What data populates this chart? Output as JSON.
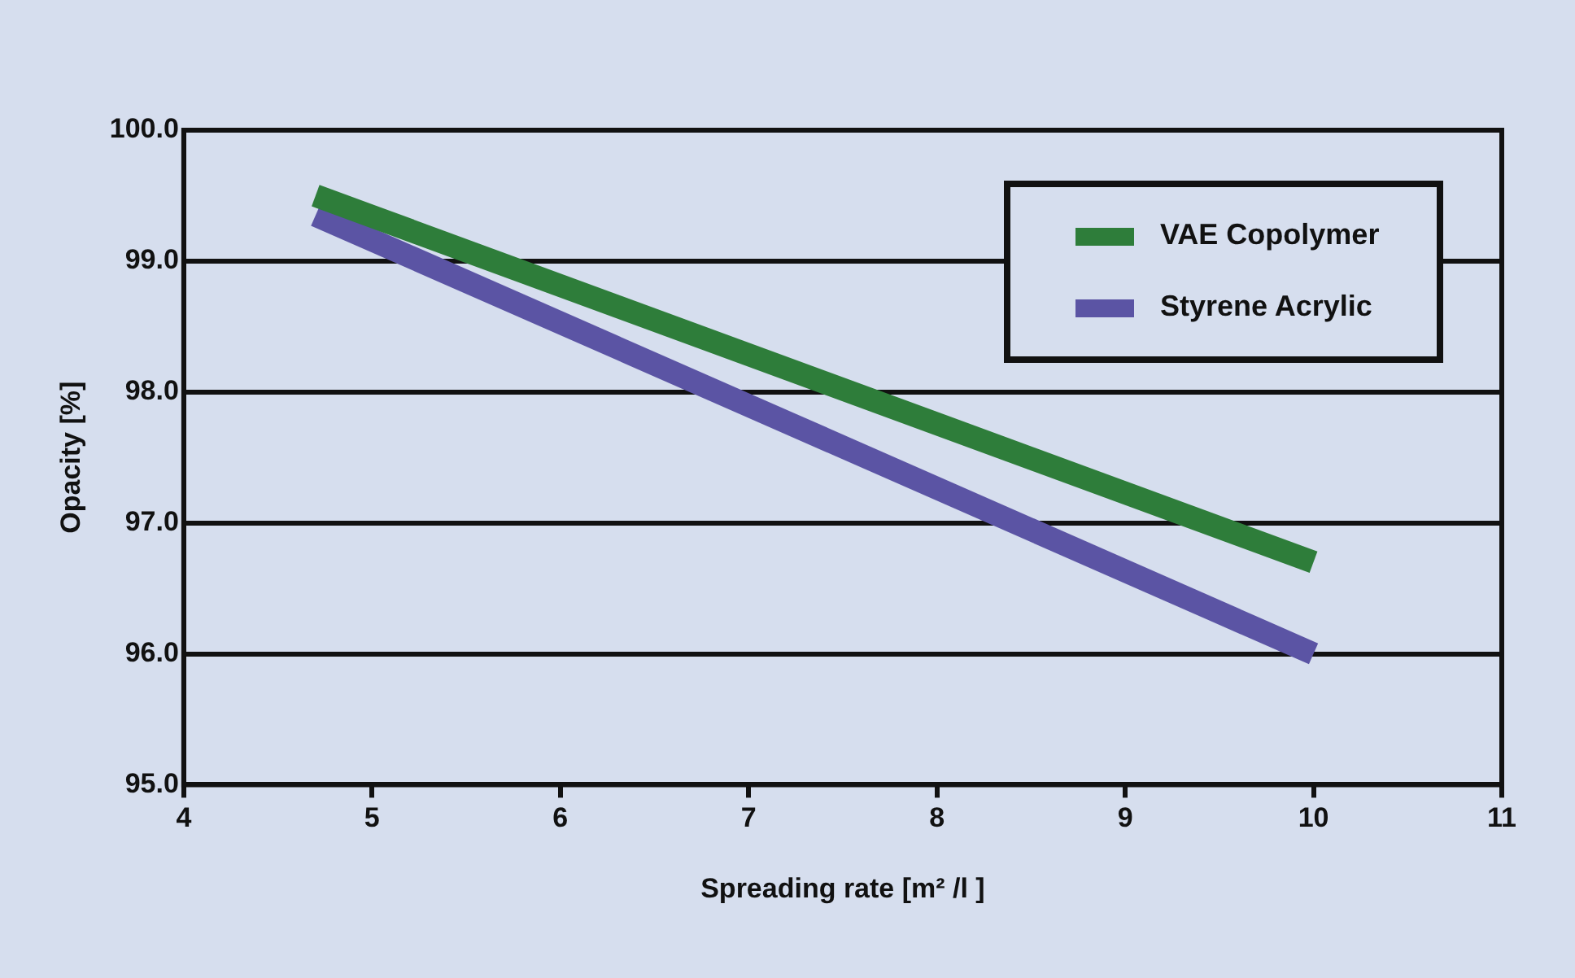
{
  "chart_data": {
    "type": "line",
    "xlabel": "Spreading rate [m² /l ]",
    "ylabel": "Opacity [%]",
    "x": [
      4.7,
      10
    ],
    "xlim": [
      4,
      11
    ],
    "xticks": [
      4,
      5,
      6,
      7,
      8,
      9,
      10,
      11
    ],
    "ylim": [
      95,
      100
    ],
    "yticks": [
      {
        "value": 95,
        "label": "95.0"
      },
      {
        "value": 96,
        "label": "96.0"
      },
      {
        "value": 97,
        "label": "97.0"
      },
      {
        "value": 98,
        "label": "98.0"
      },
      {
        "value": 99,
        "label": "99.0"
      },
      {
        "value": 100,
        "label": "100.0"
      }
    ],
    "grid": "y",
    "legend": "top right",
    "marker": "none",
    "line_style": "solid",
    "series": [
      {
        "name": "VAE Copolymer",
        "color": "#2e7d3a",
        "values": [
          99.5,
          96.7
        ]
      },
      {
        "name": "Styrene Acrylic",
        "color": "#5b54a4",
        "values": [
          99.35,
          96.0
        ]
      }
    ]
  }
}
